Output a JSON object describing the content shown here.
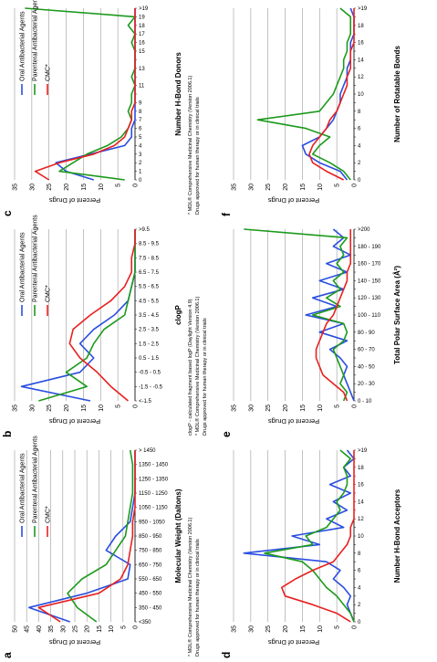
{
  "chart_data": [
    {
      "type": "line",
      "panel": "a",
      "x_label": "Molecular Weight (Daltons)",
      "y_label": "Percent of Drugs",
      "categories": [
        "<350",
        "350 - 450",
        "450 - 550",
        "550 - 650",
        "650 - 750",
        "750 - 850",
        "850 - 950",
        "950 - 1050",
        "1050 - 1150",
        "1150 - 1250",
        "1250 - 1350",
        "1350 - 1450",
        "> 1450"
      ],
      "series": [
        {
          "name": "Oral Antibacterial Agents",
          "color": "#2a4ee0",
          "values": [
            27,
            44,
            20,
            3,
            2,
            12,
            8,
            2,
            1,
            0,
            0,
            0,
            0
          ]
        },
        {
          "name": "Parenteral Antibacterial Agents",
          "color": "#1c9a1c",
          "values": [
            16,
            24,
            28,
            22,
            12,
            8,
            4,
            3,
            2,
            1,
            1,
            1,
            2
          ]
        },
        {
          "name": "CMC*",
          "color": "#e82020",
          "values": [
            31,
            40,
            15,
            6,
            3,
            2,
            1,
            1,
            0,
            0,
            0,
            0,
            0
          ]
        }
      ],
      "ylim": [
        0,
        50
      ],
      "yticks": [
        0,
        5,
        10,
        15,
        20,
        25,
        30,
        35,
        40,
        45,
        50
      ],
      "grid": true,
      "notes": [
        "* MDL® Comprehensive Medicinal Chemistry (Version 2006.1)",
        "Drugs approved for human therapy or in clinical trials"
      ]
    },
    {
      "type": "line",
      "panel": "b",
      "x_label": "clogP",
      "y_label": "Percent of Drugs",
      "categories": [
        "<-1.5",
        "-1.5 - -0.5",
        "-0.5 - 0.5",
        "0.5 - 1.5",
        "1.5 - 2.5",
        "2.5 - 3.5",
        "3.5 - 4.5",
        "4.5 - 5.5",
        "5.5 - 6.5",
        "6.5 - 7.5",
        "7.5 - 8.5",
        "8.5 - 9.5",
        ">9.5"
      ],
      "series": [
        {
          "name": "Oral Antibacterial Agents",
          "color": "#2a4ee0",
          "values": [
            13,
            33,
            16,
            12,
            16,
            12,
            6,
            2,
            1,
            0,
            0,
            0,
            0
          ]
        },
        {
          "name": "Parenteral Antibacterial Agents",
          "color": "#1c9a1c",
          "values": [
            28,
            14,
            20,
            14,
            12,
            9,
            3,
            2,
            1,
            0,
            0,
            0,
            0
          ]
        },
        {
          "name": "CMC*",
          "color": "#e82020",
          "values": [
            2,
            7,
            11,
            16,
            19,
            18,
            13,
            7,
            3,
            1,
            1,
            0,
            0
          ]
        }
      ],
      "ylim": [
        0,
        35
      ],
      "yticks": [
        0,
        5,
        10,
        15,
        20,
        25,
        30,
        35
      ],
      "grid": true,
      "notes": [
        "clogP - calculated fragment based logP (Daylight Version 4.9)",
        "* MDL® Comprehensive Medicinal Chemistry (Version 2006.1)",
        "Drugs approved for human therapy or in clinical trials"
      ]
    },
    {
      "type": "line",
      "panel": "c",
      "x_label": "Number H-Bond Donors",
      "y_label": "Percent of Drugs",
      "categories": [
        "0",
        "1",
        "2",
        "3",
        "4",
        "5",
        "6",
        "7",
        "8",
        "9",
        null,
        "11",
        null,
        "13",
        null,
        "15",
        "16",
        "17",
        "18",
        "19",
        ">19"
      ],
      "series": [
        {
          "name": "Oral Antibacterial Agents",
          "color": "#2a4ee0",
          "values": [
            12,
            20,
            23,
            13,
            3,
            1,
            1,
            0,
            0,
            0,
            0,
            0,
            0,
            0,
            0,
            0,
            0,
            0,
            0,
            0,
            0
          ]
        },
        {
          "name": "Parenteral Antibacterial Agents",
          "color": "#1c9a1c",
          "values": [
            3,
            22,
            18,
            14,
            8,
            4,
            2,
            1,
            2,
            1,
            1,
            0,
            1,
            0,
            0,
            0,
            1,
            0,
            2,
            0,
            32
          ]
        },
        {
          "name": "CMC*",
          "color": "#e82020",
          "values": [
            25,
            29,
            22,
            12,
            6,
            3,
            2,
            1,
            1,
            0,
            0,
            0,
            0,
            0,
            0,
            0,
            0,
            0,
            0,
            0,
            0
          ]
        }
      ],
      "ylim": [
        0,
        35
      ],
      "yticks": [
        0,
        5,
        10,
        15,
        20,
        25,
        30,
        35
      ],
      "grid": true,
      "notes": [
        "* MDL® Comprehensive Medicinal Chemistry (Version 2006.1)",
        "Drugs approved for human therapy or in clinical trials"
      ]
    },
    {
      "type": "line",
      "panel": "d",
      "x_label": "Number H-Bond Acceptors",
      "y_label": "Percent of Drugs",
      "categories": [
        "0",
        null,
        "2",
        null,
        "4",
        null,
        "6",
        null,
        "8",
        null,
        "10",
        null,
        "12",
        null,
        "14",
        null,
        "16",
        null,
        "18",
        null,
        ">19"
      ],
      "series": [
        {
          "color": "#2a4ee0",
          "values": [
            0,
            1,
            2,
            1,
            3,
            6,
            4,
            8,
            32,
            10,
            18,
            3,
            8,
            2,
            6,
            1,
            7,
            1,
            3,
            0,
            2
          ]
        },
        {
          "color": "#1c9a1c",
          "values": [
            0,
            1,
            3,
            5,
            8,
            10,
            12,
            15,
            26,
            12,
            14,
            8,
            6,
            4,
            5,
            3,
            2,
            2,
            3,
            1,
            4
          ]
        },
        {
          "color": "#e82020",
          "values": [
            1,
            5,
            12,
            20,
            21,
            17,
            12,
            6,
            4,
            2,
            1,
            1,
            0,
            0,
            0,
            0,
            0,
            0,
            0,
            0,
            0
          ]
        }
      ],
      "ylim": [
        0,
        35
      ],
      "yticks": [
        0,
        5,
        10,
        15,
        20,
        25,
        30,
        35
      ],
      "grid": true
    },
    {
      "type": "line",
      "panel": "e",
      "x_label": "Total Polar Surface Area (Å²)",
      "y_label": "Percent of Drugs",
      "categories": [
        "0 - 10",
        null,
        "20 - 30",
        null,
        "40 - 50",
        null,
        "60 - 70",
        null,
        "80 - 90",
        null,
        "100 - 110",
        null,
        "120 - 130",
        null,
        "140 - 150",
        null,
        "160 - 170",
        null,
        "180 - 190",
        null,
        ">200"
      ],
      "series": [
        {
          "color": "#2a4ee0",
          "values": [
            0,
            1,
            2,
            3,
            2,
            4,
            7,
            2,
            10,
            3,
            14,
            5,
            12,
            3,
            10,
            2,
            8,
            1,
            6,
            3,
            6
          ]
        },
        {
          "color": "#1c9a1c",
          "values": [
            3,
            2,
            4,
            3,
            4,
            5,
            6,
            3,
            2,
            3,
            12,
            4,
            8,
            4,
            6,
            3,
            5,
            3,
            4,
            2,
            32
          ]
        },
        {
          "color": "#e82020",
          "values": [
            2,
            3,
            6,
            9,
            10,
            11,
            11,
            10,
            9,
            8,
            6,
            5,
            4,
            3,
            2,
            2,
            1,
            1,
            1,
            1,
            1
          ]
        }
      ],
      "ylim": [
        0,
        35
      ],
      "yticks": [
        0,
        5,
        10,
        15,
        20,
        25,
        30,
        35
      ],
      "grid": true
    },
    {
      "type": "line",
      "panel": "f",
      "x_label": "Number of Rotatable Bonds",
      "y_label": "Percent of Drugs",
      "categories": [
        "0",
        null,
        "2",
        null,
        "4",
        null,
        "6",
        null,
        "8",
        null,
        "10",
        null,
        "12",
        null,
        "14",
        null,
        "16",
        null,
        "18",
        null,
        ">19"
      ],
      "series": [
        {
          "color": "#2a4ee0",
          "values": [
            2,
            4,
            10,
            14,
            15,
            10,
            8,
            6,
            5,
            4,
            4,
            3,
            2,
            2,
            1,
            1,
            1,
            0,
            0,
            0,
            1
          ]
        },
        {
          "color": "#1c9a1c",
          "values": [
            1,
            3,
            7,
            12,
            10,
            7,
            14,
            28,
            10,
            8,
            6,
            5,
            4,
            3,
            3,
            2,
            2,
            1,
            1,
            1,
            4
          ]
        },
        {
          "color": "#e82020",
          "values": [
            3,
            8,
            12,
            13,
            12,
            10,
            8,
            7,
            5,
            4,
            3,
            2,
            2,
            1,
            1,
            1,
            0,
            0,
            0,
            0,
            0
          ]
        }
      ],
      "ylim": [
        0,
        35
      ],
      "yticks": [
        0,
        5,
        10,
        15,
        20,
        25,
        30,
        35
      ],
      "grid": true
    }
  ]
}
